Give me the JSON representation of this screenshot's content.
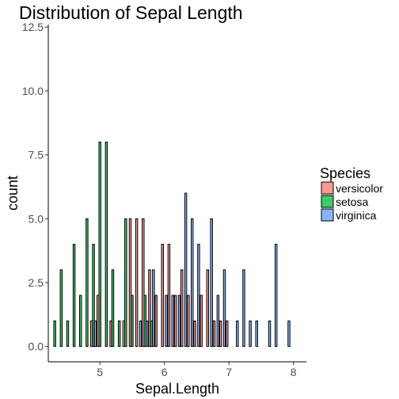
{
  "chart_data": {
    "type": "bar",
    "title": "Distribution of Sepal Length",
    "xlabel": "Sepal.Length",
    "ylabel": "count",
    "xlim": [
      4.2,
      8.2
    ],
    "ylim": [
      -0.6,
      12.6
    ],
    "x_ticks": [
      {
        "value": 5,
        "label": "5"
      },
      {
        "value": 6,
        "label": "6"
      },
      {
        "value": 7,
        "label": "7"
      },
      {
        "value": 8,
        "label": "8"
      }
    ],
    "y_ticks": [
      {
        "value": 0,
        "label": "0.0"
      },
      {
        "value": 2.5,
        "label": "2.5"
      },
      {
        "value": 5,
        "label": "5.0"
      },
      {
        "value": 7.5,
        "label": "7.5"
      },
      {
        "value": 10,
        "label": "10.0"
      },
      {
        "value": 12.5,
        "label": "12.5"
      }
    ],
    "legend": {
      "title": "Species",
      "position": "right"
    },
    "grid": false,
    "bin_width": 0.1,
    "series": [
      {
        "name": "versicolor",
        "color": "#F8766D",
        "points": [
          {
            "x": 4.9,
            "y": 1
          },
          {
            "x": 5.0,
            "y": 2
          },
          {
            "x": 5.1,
            "y": 0
          },
          {
            "x": 5.2,
            "y": 1
          },
          {
            "x": 5.4,
            "y": 1
          },
          {
            "x": 5.5,
            "y": 5
          },
          {
            "x": 5.6,
            "y": 5
          },
          {
            "x": 5.7,
            "y": 5
          },
          {
            "x": 5.8,
            "y": 3
          },
          {
            "x": 5.9,
            "y": 2
          },
          {
            "x": 6.0,
            "y": 4
          },
          {
            "x": 6.1,
            "y": 4
          },
          {
            "x": 6.2,
            "y": 2
          },
          {
            "x": 6.3,
            "y": 3
          },
          {
            "x": 6.4,
            "y": 2
          },
          {
            "x": 6.5,
            "y": 1
          },
          {
            "x": 6.6,
            "y": 2
          },
          {
            "x": 6.7,
            "y": 3
          },
          {
            "x": 6.8,
            "y": 1
          },
          {
            "x": 6.9,
            "y": 1
          },
          {
            "x": 7.0,
            "y": 1
          }
        ]
      },
      {
        "name": "setosa",
        "color": "#00BA38",
        "points": [
          {
            "x": 4.3,
            "y": 1
          },
          {
            "x": 4.4,
            "y": 3
          },
          {
            "x": 4.5,
            "y": 1
          },
          {
            "x": 4.6,
            "y": 4
          },
          {
            "x": 4.7,
            "y": 2
          },
          {
            "x": 4.8,
            "y": 5
          },
          {
            "x": 4.9,
            "y": 4
          },
          {
            "x": 5.0,
            "y": 8
          },
          {
            "x": 5.1,
            "y": 8
          },
          {
            "x": 5.2,
            "y": 3
          },
          {
            "x": 5.3,
            "y": 1
          },
          {
            "x": 5.4,
            "y": 5
          },
          {
            "x": 5.5,
            "y": 2
          },
          {
            "x": 5.7,
            "y": 2
          },
          {
            "x": 5.8,
            "y": 1
          }
        ]
      },
      {
        "name": "virginica",
        "color": "#619CFF",
        "points": [
          {
            "x": 4.9,
            "y": 1
          },
          {
            "x": 5.6,
            "y": 1
          },
          {
            "x": 5.7,
            "y": 1
          },
          {
            "x": 5.8,
            "y": 3
          },
          {
            "x": 6.0,
            "y": 2
          },
          {
            "x": 6.1,
            "y": 2
          },
          {
            "x": 6.2,
            "y": 2
          },
          {
            "x": 6.3,
            "y": 6
          },
          {
            "x": 6.4,
            "y": 5
          },
          {
            "x": 6.5,
            "y": 4
          },
          {
            "x": 6.7,
            "y": 5
          },
          {
            "x": 6.8,
            "y": 2
          },
          {
            "x": 6.9,
            "y": 3
          },
          {
            "x": 7.1,
            "y": 1
          },
          {
            "x": 7.2,
            "y": 3
          },
          {
            "x": 7.3,
            "y": 1
          },
          {
            "x": 7.4,
            "y": 1
          },
          {
            "x": 7.6,
            "y": 1
          },
          {
            "x": 7.7,
            "y": 4
          },
          {
            "x": 7.9,
            "y": 1
          }
        ]
      }
    ]
  }
}
